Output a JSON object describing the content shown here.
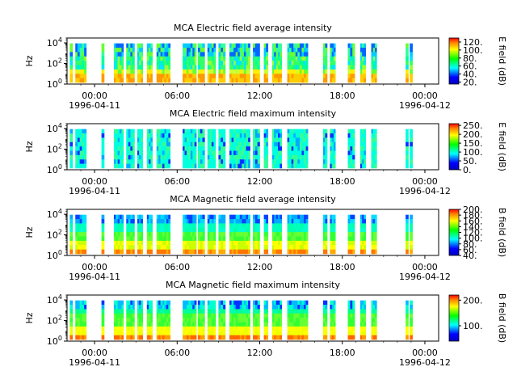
{
  "chart_data": [
    {
      "type": "heatmap",
      "title": "MCA  Electric field average intensity",
      "ylabel": "Hz",
      "yscale": "log",
      "ylim": [
        1,
        30000
      ],
      "y_ticks": [
        {
          "base": "10",
          "exp": "0"
        },
        {
          "base": "10",
          "exp": "2"
        },
        {
          "base": "10",
          "exp": "4"
        }
      ],
      "xlim": [
        "1996-04-10 22:00",
        "1996-04-12 01:00"
      ],
      "x_ticks": [
        {
          "time": "00:00",
          "date": "1996-04-11"
        },
        {
          "time": "06:00",
          "date": ""
        },
        {
          "time": "12:00",
          "date": ""
        },
        {
          "time": "18:00",
          "date": ""
        },
        {
          "time": "00:00",
          "date": "1996-04-12"
        }
      ],
      "colorbar_label": "E field (dB)",
      "colorbar_range": [
        15,
        130
      ],
      "colorbar_ticks": [
        "20.",
        "40.",
        "60.",
        "80.",
        "100.",
        "120."
      ],
      "segments_hours": [
        [
          22.2,
          22.4
        ],
        [
          22.6,
          23.4
        ],
        [
          24.5,
          24.7
        ],
        [
          25.4,
          26.1
        ],
        [
          26.3,
          26.9
        ],
        [
          27.1,
          27.5
        ],
        [
          27.8,
          28.2
        ],
        [
          28.5,
          29.5
        ],
        [
          30.4,
          31.4
        ],
        [
          31.5,
          32.0
        ],
        [
          32.2,
          32.8
        ],
        [
          33.0,
          33.5
        ],
        [
          33.8,
          35.3
        ],
        [
          35.5,
          36.0
        ],
        [
          36.3,
          36.6
        ],
        [
          36.9,
          37.6
        ],
        [
          38.0,
          39.5
        ],
        [
          40.6,
          40.9
        ],
        [
          41.1,
          41.5
        ],
        [
          42.4,
          42.9
        ],
        [
          43.3,
          43.7
        ],
        [
          44.1,
          44.5
        ],
        [
          46.6,
          46.8
        ],
        [
          46.9,
          47.1
        ]
      ],
      "palette": "level_mid"
    },
    {
      "type": "heatmap",
      "title": "MCA  Electric field maximum intensity",
      "ylabel": "Hz",
      "yscale": "log",
      "ylim": [
        1,
        30000
      ],
      "y_ticks": [
        {
          "base": "10",
          "exp": "0"
        },
        {
          "base": "10",
          "exp": "2"
        },
        {
          "base": "10",
          "exp": "4"
        }
      ],
      "xlim": [
        "1996-04-10 22:00",
        "1996-04-12 01:00"
      ],
      "x_ticks": [
        {
          "time": "00:00",
          "date": "1996-04-11"
        },
        {
          "time": "06:00",
          "date": ""
        },
        {
          "time": "12:00",
          "date": ""
        },
        {
          "time": "18:00",
          "date": ""
        },
        {
          "time": "00:00",
          "date": "1996-04-12"
        }
      ],
      "colorbar_label": "E field (dB)",
      "colorbar_range": [
        0,
        260
      ],
      "colorbar_ticks": [
        "0.",
        "50.",
        "100.",
        "150.",
        "200.",
        "250."
      ],
      "segments_hours": [
        [
          22.2,
          22.4
        ],
        [
          22.6,
          23.4
        ],
        [
          24.5,
          24.7
        ],
        [
          25.4,
          26.1
        ],
        [
          26.3,
          26.9
        ],
        [
          27.1,
          27.5
        ],
        [
          27.8,
          28.2
        ],
        [
          28.5,
          29.5
        ],
        [
          30.4,
          31.4
        ],
        [
          31.5,
          32.0
        ],
        [
          32.2,
          32.8
        ],
        [
          33.0,
          33.5
        ],
        [
          33.8,
          35.3
        ],
        [
          35.5,
          36.0
        ],
        [
          36.3,
          36.6
        ],
        [
          36.9,
          37.6
        ],
        [
          38.0,
          39.5
        ],
        [
          40.6,
          40.9
        ],
        [
          41.1,
          41.5
        ],
        [
          42.4,
          42.9
        ],
        [
          43.3,
          43.7
        ],
        [
          44.1,
          44.5
        ],
        [
          46.6,
          46.8
        ],
        [
          46.9,
          47.1
        ]
      ],
      "palette": "level_cyan"
    },
    {
      "type": "heatmap",
      "title": "MCA  Magnetic field average intensity",
      "ylabel": "Hz",
      "yscale": "log",
      "ylim": [
        1,
        30000
      ],
      "y_ticks": [
        {
          "base": "10",
          "exp": "0"
        },
        {
          "base": "10",
          "exp": "2"
        },
        {
          "base": "10",
          "exp": "4"
        }
      ],
      "xlim": [
        "1996-04-10 22:00",
        "1996-04-12 01:00"
      ],
      "x_ticks": [
        {
          "time": "00:00",
          "date": "1996-04-11"
        },
        {
          "time": "06:00",
          "date": ""
        },
        {
          "time": "12:00",
          "date": ""
        },
        {
          "time": "18:00",
          "date": ""
        },
        {
          "time": "00:00",
          "date": "1996-04-12"
        }
      ],
      "colorbar_label": "B field (dB)",
      "colorbar_range": [
        40,
        200
      ],
      "colorbar_ticks": [
        "40.",
        "60.",
        "80.",
        "100.",
        "120.",
        "140.",
        "160.",
        "180.",
        "200."
      ],
      "segments_hours": [
        [
          22.2,
          22.4
        ],
        [
          22.6,
          23.4
        ],
        [
          24.5,
          24.7
        ],
        [
          25.4,
          26.1
        ],
        [
          26.3,
          26.9
        ],
        [
          27.1,
          27.5
        ],
        [
          27.8,
          28.2
        ],
        [
          28.5,
          29.5
        ],
        [
          30.4,
          31.4
        ],
        [
          31.5,
          32.0
        ],
        [
          32.2,
          32.8
        ],
        [
          33.0,
          33.5
        ],
        [
          33.8,
          35.3
        ],
        [
          35.5,
          36.0
        ],
        [
          36.3,
          36.6
        ],
        [
          36.9,
          37.6
        ],
        [
          38.0,
          39.5
        ],
        [
          40.6,
          40.9
        ],
        [
          41.1,
          41.5
        ],
        [
          42.4,
          42.9
        ],
        [
          43.3,
          43.7
        ],
        [
          44.1,
          44.5
        ],
        [
          46.6,
          46.8
        ],
        [
          46.9,
          47.1
        ]
      ],
      "palette": "spectral_bands"
    },
    {
      "type": "heatmap",
      "title": "MCA  Magnetic field maximum intensity",
      "ylabel": "Hz",
      "yscale": "log",
      "ylim": [
        1,
        30000
      ],
      "y_ticks": [
        {
          "base": "10",
          "exp": "0"
        },
        {
          "base": "10",
          "exp": "2"
        },
        {
          "base": "10",
          "exp": "4"
        }
      ],
      "xlim": [
        "1996-04-10 22:00",
        "1996-04-12 01:00"
      ],
      "x_ticks": [
        {
          "time": "00:00",
          "date": "1996-04-11"
        },
        {
          "time": "06:00",
          "date": ""
        },
        {
          "time": "12:00",
          "date": ""
        },
        {
          "time": "18:00",
          "date": ""
        },
        {
          "time": "00:00",
          "date": "1996-04-12"
        }
      ],
      "colorbar_label": "B field (dB)",
      "colorbar_range": [
        40,
        220
      ],
      "colorbar_ticks": [
        "100.",
        "200."
      ],
      "colorbar_tick_values": [
        100,
        200
      ],
      "segments_hours": [
        [
          22.2,
          22.4
        ],
        [
          22.6,
          23.4
        ],
        [
          24.5,
          24.7
        ],
        [
          25.4,
          26.1
        ],
        [
          26.3,
          26.9
        ],
        [
          27.1,
          27.5
        ],
        [
          27.8,
          28.2
        ],
        [
          28.5,
          29.5
        ],
        [
          30.4,
          31.4
        ],
        [
          31.5,
          32.0
        ],
        [
          32.2,
          32.8
        ],
        [
          33.0,
          33.5
        ],
        [
          33.8,
          35.3
        ],
        [
          35.5,
          36.0
        ],
        [
          36.3,
          36.6
        ],
        [
          36.9,
          37.6
        ],
        [
          38.0,
          39.5
        ],
        [
          40.6,
          40.9
        ],
        [
          41.1,
          41.5
        ],
        [
          42.4,
          42.9
        ],
        [
          43.3,
          43.7
        ],
        [
          44.1,
          44.5
        ],
        [
          46.6,
          46.8
        ],
        [
          46.9,
          47.1
        ]
      ],
      "palette": "spectral_bands_max"
    }
  ]
}
